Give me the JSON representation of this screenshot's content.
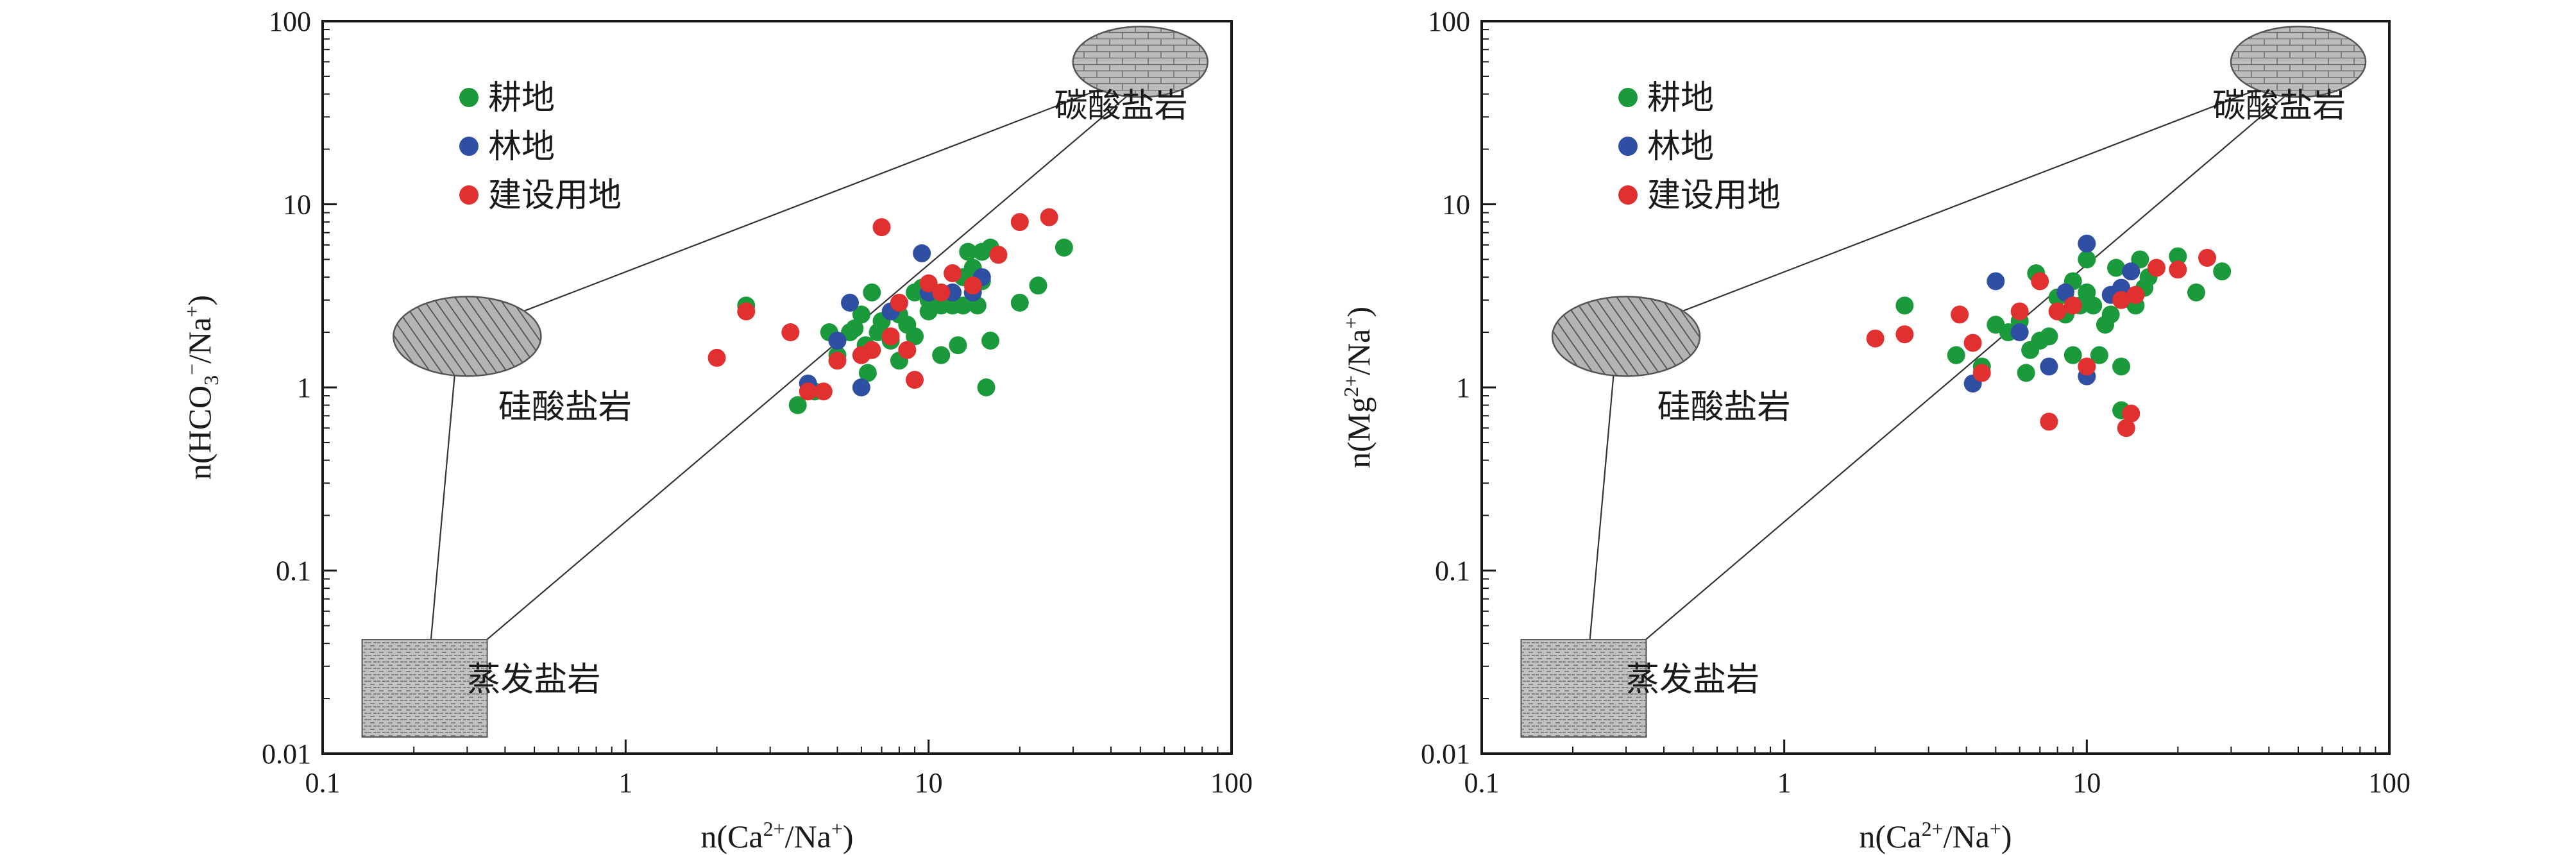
{
  "legend": [
    {
      "label": "耕地",
      "color": "#1b9a3c"
    },
    {
      "label": "林地",
      "color": "#2f4fa3"
    },
    {
      "label": "建设用地",
      "color": "#e03030"
    }
  ],
  "regions": {
    "carbonate": "碳酸盐岩",
    "silicate": "硅酸盐岩",
    "evaporite": "蒸发盐岩"
  },
  "chart_data": [
    {
      "type": "scatter",
      "xlabel": "n(Ca2+/Na+)",
      "ylabel": "n(HCO3−/Na+)",
      "x_scale": "log",
      "y_scale": "log",
      "xlim": [
        0.1,
        100
      ],
      "ylim": [
        0.01,
        100
      ],
      "x_ticks": [
        "0.1",
        "1",
        "10",
        "100"
      ],
      "y_ticks": [
        "0.01",
        "0.1",
        "1",
        "10",
        "100"
      ],
      "grid": false,
      "legend_position": "top-left",
      "series": [
        {
          "name": "耕地",
          "color": "#1b9a3c",
          "points": [
            [
              2.5,
              2.8
            ],
            [
              3.7,
              0.8
            ],
            [
              4.2,
              0.95
            ],
            [
              4.7,
              2.0
            ],
            [
              5.0,
              1.5
            ],
            [
              5.5,
              2.0
            ],
            [
              5.7,
              2.1
            ],
            [
              6.0,
              2.5
            ],
            [
              6.2,
              1.7
            ],
            [
              6.3,
              1.2
            ],
            [
              6.4,
              1.6
            ],
            [
              6.5,
              3.3
            ],
            [
              6.8,
              2.0
            ],
            [
              7.0,
              2.3
            ],
            [
              7.5,
              1.8
            ],
            [
              8.0,
              2.5
            ],
            [
              8.0,
              1.4
            ],
            [
              8.5,
              2.2
            ],
            [
              9.0,
              1.9
            ],
            [
              9.0,
              3.3
            ],
            [
              9.5,
              3.5
            ],
            [
              10.0,
              2.6
            ],
            [
              10.0,
              3.0
            ],
            [
              11.0,
              2.8
            ],
            [
              11.0,
              1.5
            ],
            [
              11.5,
              3.2
            ],
            [
              12.0,
              2.8
            ],
            [
              12.5,
              1.7
            ],
            [
              13.0,
              2.8
            ],
            [
              13.5,
              5.5
            ],
            [
              14.0,
              4.5
            ],
            [
              14.5,
              2.8
            ],
            [
              15.0,
              5.5
            ],
            [
              15.5,
              1.0
            ],
            [
              16.0,
              1.8
            ],
            [
              16.0,
              5.8
            ],
            [
              20.0,
              2.9
            ],
            [
              23.0,
              3.6
            ],
            [
              28.0,
              5.8
            ],
            [
              15.0,
              3.8
            ],
            [
              13.0,
              4.0
            ]
          ]
        },
        {
          "name": "林地",
          "color": "#2f4fa3",
          "points": [
            [
              4.0,
              1.05
            ],
            [
              5.0,
              1.8
            ],
            [
              5.5,
              2.9
            ],
            [
              6.0,
              1.0
            ],
            [
              7.5,
              2.6
            ],
            [
              9.5,
              5.4
            ],
            [
              10.0,
              3.3
            ],
            [
              12.0,
              3.3
            ],
            [
              14.0,
              3.3
            ],
            [
              15.0,
              4.0
            ]
          ]
        },
        {
          "name": "建设用地",
          "color": "#e03030",
          "points": [
            [
              2.0,
              1.45
            ],
            [
              2.5,
              2.6
            ],
            [
              3.5,
              2.0
            ],
            [
              4.0,
              0.95
            ],
            [
              4.5,
              0.95
            ],
            [
              5.0,
              1.4
            ],
            [
              6.0,
              1.5
            ],
            [
              6.5,
              1.6
            ],
            [
              7.0,
              7.5
            ],
            [
              7.5,
              1.9
            ],
            [
              8.0,
              2.9
            ],
            [
              8.5,
              1.6
            ],
            [
              9.0,
              1.1
            ],
            [
              10.0,
              3.7
            ],
            [
              11.0,
              3.3
            ],
            [
              12.0,
              4.2
            ],
            [
              14.0,
              3.6
            ],
            [
              17.0,
              5.3
            ],
            [
              20.0,
              8.0
            ],
            [
              25.0,
              8.5
            ]
          ]
        }
      ]
    },
    {
      "type": "scatter",
      "xlabel": "n(Ca2+/Na+)",
      "ylabel": "n(Mg2+/Na+)",
      "x_scale": "log",
      "y_scale": "log",
      "xlim": [
        0.1,
        100
      ],
      "ylim": [
        0.01,
        100
      ],
      "x_ticks": [
        "0.1",
        "1",
        "10",
        "100"
      ],
      "y_ticks": [
        "0.01",
        "0.1",
        "1",
        "10",
        "100"
      ],
      "grid": false,
      "legend_position": "top-left",
      "series": [
        {
          "name": "耕地",
          "color": "#1b9a3c",
          "points": [
            [
              2.5,
              2.8
            ],
            [
              3.7,
              1.5
            ],
            [
              4.5,
              1.3
            ],
            [
              5.0,
              2.2
            ],
            [
              5.5,
              2.0
            ],
            [
              6.0,
              2.3
            ],
            [
              6.3,
              1.2
            ],
            [
              6.5,
              1.6
            ],
            [
              6.8,
              4.2
            ],
            [
              7.0,
              1.8
            ],
            [
              7.5,
              1.9
            ],
            [
              8.0,
              3.1
            ],
            [
              8.5,
              2.5
            ],
            [
              9.0,
              3.8
            ],
            [
              9.0,
              1.5
            ],
            [
              9.5,
              2.8
            ],
            [
              10.0,
              3.3
            ],
            [
              10.0,
              5.0
            ],
            [
              10.5,
              2.8
            ],
            [
              11.0,
              1.5
            ],
            [
              11.5,
              2.2
            ],
            [
              12.0,
              2.5
            ],
            [
              12.5,
              4.5
            ],
            [
              13.0,
              1.3
            ],
            [
              13.0,
              0.75
            ],
            [
              14.0,
              3.0
            ],
            [
              14.5,
              2.8
            ],
            [
              15.0,
              5.0
            ],
            [
              15.5,
              3.5
            ],
            [
              16.0,
              4.0
            ],
            [
              20.0,
              5.2
            ],
            [
              23.0,
              3.3
            ],
            [
              28.0,
              4.3
            ]
          ]
        },
        {
          "name": "林地",
          "color": "#2f4fa3",
          "points": [
            [
              4.2,
              1.05
            ],
            [
              5.0,
              3.8
            ],
            [
              6.0,
              2.0
            ],
            [
              7.5,
              1.3
            ],
            [
              8.5,
              3.3
            ],
            [
              10.0,
              6.1
            ],
            [
              10.0,
              1.15
            ],
            [
              12.0,
              3.2
            ],
            [
              13.0,
              3.5
            ],
            [
              14.0,
              4.3
            ]
          ]
        },
        {
          "name": "建设用地",
          "color": "#e03030",
          "points": [
            [
              2.0,
              1.85
            ],
            [
              2.5,
              1.95
            ],
            [
              3.8,
              2.5
            ],
            [
              4.2,
              1.75
            ],
            [
              4.5,
              1.2
            ],
            [
              6.0,
              2.6
            ],
            [
              7.0,
              3.8
            ],
            [
              7.5,
              0.65
            ],
            [
              8.0,
              2.6
            ],
            [
              9.0,
              2.8
            ],
            [
              10.0,
              1.3
            ],
            [
              13.0,
              3.0
            ],
            [
              13.5,
              0.6
            ],
            [
              14.0,
              0.72
            ],
            [
              14.5,
              3.2
            ],
            [
              17.0,
              4.5
            ],
            [
              20.0,
              4.4
            ],
            [
              25.0,
              5.1
            ]
          ]
        }
      ]
    }
  ]
}
